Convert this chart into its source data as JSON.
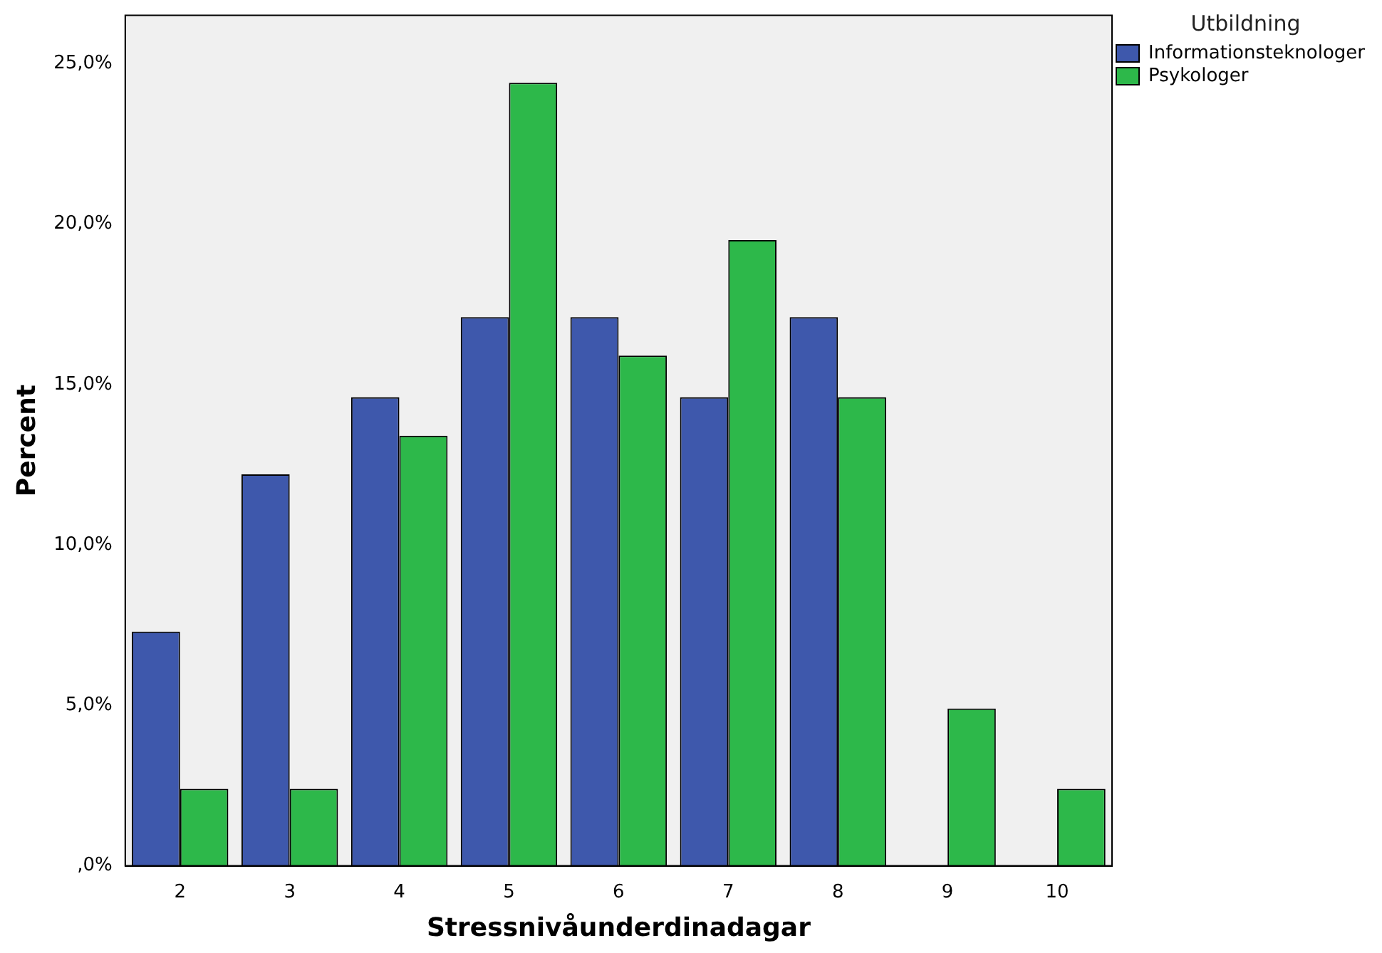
{
  "chart_data": {
    "type": "bar",
    "xlabel": "Stressnivåunderdinadagar",
    "ylabel": "Percent",
    "legend_title": "Utbildning",
    "categories": [
      "2",
      "3",
      "4",
      "5",
      "6",
      "7",
      "8",
      "9",
      "10"
    ],
    "series": [
      {
        "name": "Informationsteknologer",
        "color": "#3e58ac",
        "values": [
          7.3,
          12.2,
          14.6,
          17.1,
          17.1,
          14.6,
          17.1,
          null,
          null
        ]
      },
      {
        "name": "Psykologer",
        "color": "#2db84a",
        "values": [
          2.4,
          2.4,
          13.4,
          24.4,
          15.9,
          19.5,
          14.6,
          4.9,
          2.4
        ]
      }
    ],
    "ylim": [
      0,
      26.5
    ],
    "yticks": [
      {
        "value": 0,
        "label": ",0%"
      },
      {
        "value": 5,
        "label": "5,0%"
      },
      {
        "value": 10,
        "label": "10,0%"
      },
      {
        "value": 15,
        "label": "15,0%"
      },
      {
        "value": 20,
        "label": "20,0%"
      },
      {
        "value": 25,
        "label": "25,0%"
      }
    ],
    "grid": false,
    "legend": "top right"
  }
}
